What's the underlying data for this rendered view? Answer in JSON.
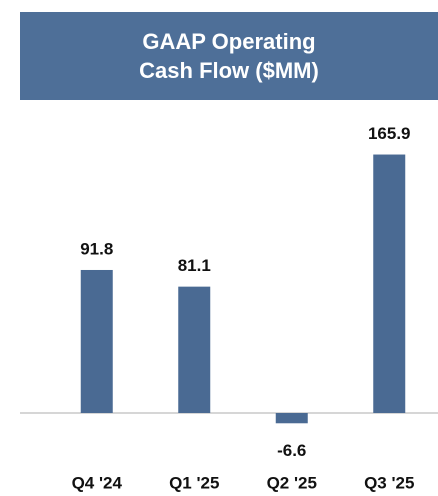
{
  "chart_data": {
    "type": "bar",
    "title": "GAAP Operating Cash Flow ($MM)",
    "categories": [
      "Q4 '24",
      "Q1 '25",
      "Q2 '25",
      "Q3 '25"
    ],
    "values": [
      91.8,
      81.1,
      -6.6,
      165.9
    ],
    "color": "#4a6a93"
  }
}
